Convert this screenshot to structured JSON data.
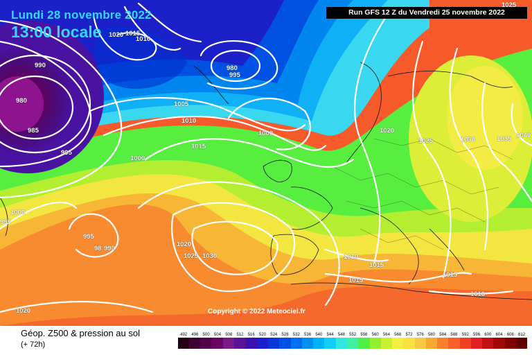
{
  "header": {
    "date": "Lundi 28 novembre 2022",
    "time": "13:00 locale",
    "run": "Run GFS 12 Z du Vendredi 25 novembre 2022"
  },
  "copyright": "Copyright © 2022 Meteociel.fr",
  "legend": {
    "title": "Géop. Z500 & pression au sol",
    "subtitle": "(+ 72h)",
    "scale_values": [
      "492",
      "496",
      "500",
      "504",
      "508",
      "512",
      "516",
      "520",
      "524",
      "528",
      "532",
      "536",
      "540",
      "544",
      "548",
      "552",
      "556",
      "560",
      "564",
      "568",
      "572",
      "576",
      "580",
      "584",
      "588",
      "592",
      "596",
      "600",
      "604",
      "608",
      "612"
    ],
    "scale_colors": [
      "#230011",
      "#3c0033",
      "#55004f",
      "#6e0066",
      "#7a1a8a",
      "#5a1296",
      "#3a10b0",
      "#1c20c8",
      "#0a38d8",
      "#0050e8",
      "#0070f0",
      "#0090f4",
      "#00b0f8",
      "#10d0f8",
      "#30e8e0",
      "#40f0a0",
      "#50f040",
      "#90f030",
      "#c8f030",
      "#f0f040",
      "#f8e040",
      "#f8c840",
      "#f8a830",
      "#f88030",
      "#f86028",
      "#f04020",
      "#e02020",
      "#c01010",
      "#a00808",
      "#800000",
      "#600000"
    ]
  },
  "isobar_labels": [
    {
      "text": "990"
    },
    {
      "text": "980"
    },
    {
      "text": "985"
    },
    {
      "text": "1020"
    },
    {
      "text": "1015"
    },
    {
      "text": "1010"
    },
    {
      "text": "980"
    },
    {
      "text": "995"
    },
    {
      "text": "995"
    },
    {
      "text": "1005"
    },
    {
      "text": "1010"
    },
    {
      "text": "1015"
    },
    {
      "text": "1000"
    },
    {
      "text": "1000"
    },
    {
      "text": "1000"
    },
    {
      "text": "995"
    },
    {
      "text": "995"
    },
    {
      "text": "98"
    },
    {
      "text": "990"
    },
    {
      "text": "1020"
    },
    {
      "text": "1025"
    },
    {
      "text": "1030"
    },
    {
      "text": "1020"
    },
    {
      "text": "1025"
    },
    {
      "text": "1030"
    },
    {
      "text": "1035"
    },
    {
      "text": "1040"
    },
    {
      "text": "1025"
    },
    {
      "text": "1010"
    },
    {
      "text": "1015"
    },
    {
      "text": "1015"
    },
    {
      "text": "1015"
    },
    {
      "text": "1010"
    },
    {
      "text": "1020"
    }
  ]
}
